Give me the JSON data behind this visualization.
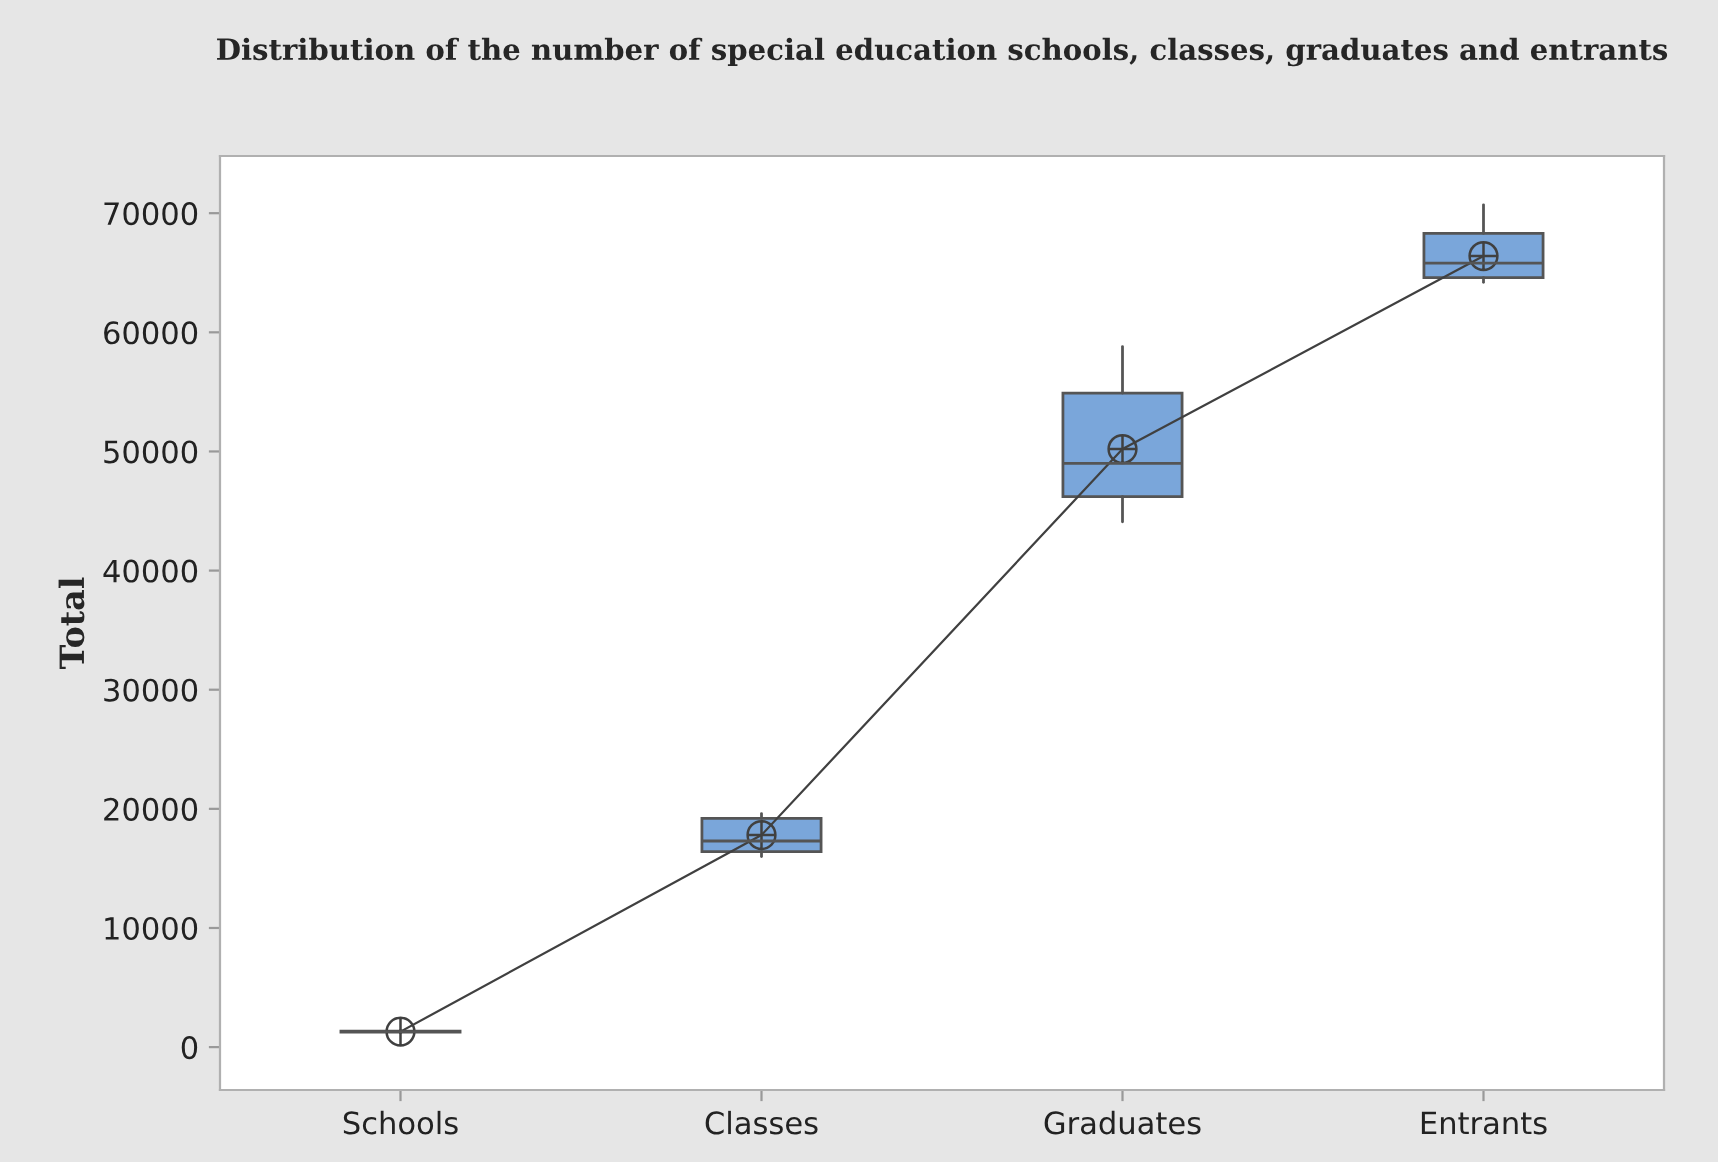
{
  "chart_data": {
    "type": "box",
    "title": "Distribution of the number of special education schools, classes, graduates and entrants",
    "ylabel": "Total",
    "categories": [
      "Schools",
      "Classes",
      "Graduates",
      "Entrants"
    ],
    "boxes": [
      {
        "low": 1200,
        "q1": 1250,
        "median": 1300,
        "q3": 1350,
        "high": 1400
      },
      {
        "low": 16000,
        "q1": 16400,
        "median": 17300,
        "q3": 19200,
        "high": 19600
      },
      {
        "low": 44100,
        "q1": 46200,
        "median": 49000,
        "q3": 54900,
        "high": 58800
      },
      {
        "low": 64200,
        "q1": 64600,
        "median": 65800,
        "q3": 68300,
        "high": 70700
      }
    ],
    "color": "#7aa6da",
    "series": [
      {
        "type": "line",
        "color": "#404040",
        "values": [
          1300,
          17800,
          50200,
          66400
        ],
        "marker": "cross"
      }
    ],
    "ylim": [
      -3600,
      74800
    ],
    "yticks": [
      0,
      10000,
      20000,
      30000,
      40000,
      50000,
      60000,
      70000
    ]
  }
}
